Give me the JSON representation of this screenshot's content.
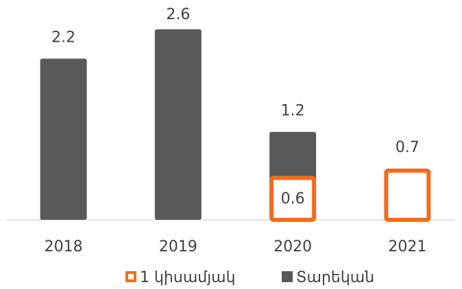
{
  "chart_data": {
    "type": "bar",
    "categories": [
      "2018",
      "2019",
      "2020",
      "2021"
    ],
    "series": [
      {
        "name": "1 կիսամյակ",
        "color": "#f26b1d",
        "values": [
          null,
          null,
          0.6,
          0.7
        ]
      },
      {
        "name": "Տարեկան",
        "color": "#595959",
        "values": [
          2.2,
          2.6,
          1.2,
          null
        ]
      }
    ],
    "ylim": [
      0,
      3.0
    ],
    "grid": false,
    "legend": "bottom"
  }
}
